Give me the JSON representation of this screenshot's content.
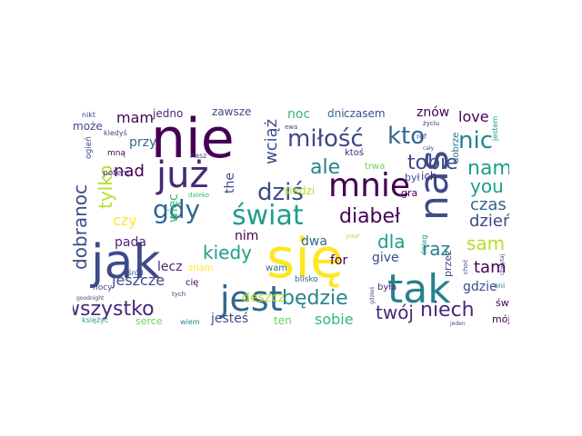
{
  "cloud": {
    "colors": {
      "dark_purple": "#440154",
      "purple": "#482878",
      "indigo": "#3e4a89",
      "blue": "#31688e",
      "teal": "#26828e",
      "green_teal": "#1f9e89",
      "green": "#35b779",
      "light_green": "#6ece58",
      "lime": "#b5de2b",
      "yellow": "#fde725"
    },
    "words": [
      {
        "text": "nie",
        "color": "#440154"
      },
      {
        "text": "się",
        "color": "#fde725"
      },
      {
        "text": "jak",
        "color": "#3e4a89"
      },
      {
        "text": "już",
        "color": "#482878"
      },
      {
        "text": "tak",
        "color": "#26828e"
      },
      {
        "text": "jest",
        "color": "#31688e"
      },
      {
        "text": "nas",
        "color": "#3e4a89"
      },
      {
        "text": "mnie",
        "color": "#440154"
      },
      {
        "text": "świat",
        "color": "#1f9e89"
      },
      {
        "text": "gdy",
        "color": "#31688e"
      },
      {
        "text": "dziś",
        "color": "#3e4a89"
      },
      {
        "text": "miłość",
        "color": "#3e4a89"
      },
      {
        "text": "kto",
        "color": "#31688e"
      },
      {
        "text": "nic",
        "color": "#26828e"
      },
      {
        "text": "ale",
        "color": "#26828e"
      },
      {
        "text": "tobie",
        "color": "#3e4a89"
      },
      {
        "text": "nam",
        "color": "#1f9e89"
      },
      {
        "text": "you",
        "color": "#1f9e89"
      },
      {
        "text": "diabeł",
        "color": "#440154"
      },
      {
        "text": "będzie",
        "color": "#26828e"
      },
      {
        "text": "wszystko",
        "color": "#482878"
      },
      {
        "text": "niech",
        "color": "#482878"
      },
      {
        "text": "twój",
        "color": "#482878"
      },
      {
        "text": "raz",
        "color": "#26828e"
      },
      {
        "text": "sam",
        "color": "#b5de2b"
      },
      {
        "text": "tam",
        "color": "#440154"
      },
      {
        "text": "czas",
        "color": "#31688e"
      },
      {
        "text": "dzień",
        "color": "#3e4a89"
      },
      {
        "text": "dla",
        "color": "#1f9e89"
      },
      {
        "text": "kiedy",
        "color": "#1f9e89"
      },
      {
        "text": "tylko",
        "color": "#b5de2b"
      },
      {
        "text": "dobranoc",
        "color": "#3e4a89"
      },
      {
        "text": "wciąż",
        "color": "#3e4a89"
      },
      {
        "text": "mam",
        "color": "#440154"
      },
      {
        "text": "nad",
        "color": "#440154"
      },
      {
        "text": "czy",
        "color": "#fde725"
      },
      {
        "text": "love",
        "color": "#440154"
      },
      {
        "text": "jeszcze",
        "color": "#3e4a89"
      },
      {
        "text": "sobie",
        "color": "#35b779"
      },
      {
        "text": "jesteś",
        "color": "#3e4a89"
      },
      {
        "text": "deszcz",
        "color": "#b5de2b"
      },
      {
        "text": "the",
        "color": "#3e4a89"
      },
      {
        "text": "noc",
        "color": "#35b779"
      },
      {
        "text": "znów",
        "color": "#440154"
      },
      {
        "text": "gdzie",
        "color": "#3e4a89"
      },
      {
        "text": "więc",
        "color": "#35b779"
      },
      {
        "text": "ten",
        "color": "#6ece58"
      },
      {
        "text": "lecz",
        "color": "#482878"
      },
      {
        "text": "pada",
        "color": "#482878"
      },
      {
        "text": "nim",
        "color": "#440154"
      },
      {
        "text": "dwa",
        "color": "#31688e"
      },
      {
        "text": "for",
        "color": "#440154"
      },
      {
        "text": "give",
        "color": "#3e4a89"
      },
      {
        "text": "przy",
        "color": "#31688e"
      },
      {
        "text": "może",
        "color": "#3e4a89"
      },
      {
        "text": "siedzi",
        "color": "#b5de2b"
      },
      {
        "text": "jedno",
        "color": "#482878"
      },
      {
        "text": "zawsze",
        "color": "#3e4a89"
      },
      {
        "text": "dni",
        "color": "#31688e"
      },
      {
        "text": "czasem",
        "color": "#3e4a89"
      },
      {
        "text": "ich",
        "color": "#482878"
      },
      {
        "text": "był",
        "color": "#3e4a89"
      },
      {
        "text": "gra",
        "color": "#440154"
      },
      {
        "text": "ktoś",
        "color": "#482878"
      },
      {
        "text": "trwa",
        "color": "#6ece58"
      },
      {
        "text": "dobrze",
        "color": "#31688e"
      },
      {
        "text": "świt",
        "color": "#440154"
      },
      {
        "text": "mój",
        "color": "#440154"
      },
      {
        "text": "przez",
        "color": "#3e4a89"
      },
      {
        "text": "była",
        "color": "#482878"
      },
      {
        "text": "serce",
        "color": "#6ece58"
      },
      {
        "text": "wiem",
        "color": "#26828e"
      },
      {
        "text": "wam",
        "color": "#31688e"
      },
      {
        "text": "blisko",
        "color": "#31688e"
      },
      {
        "text": "cię",
        "color": "#440154"
      },
      {
        "text": "znam",
        "color": "#fde725"
      },
      {
        "text": "potem",
        "color": "#482878"
      },
      {
        "text": "ogień",
        "color": "#3e4a89"
      },
      {
        "text": "mną",
        "color": "#440154"
      },
      {
        "text": "kiedyś",
        "color": "#3e4a89"
      },
      {
        "text": "nikt",
        "color": "#3e4a89"
      },
      {
        "text": "nasz",
        "color": "#3e4a89"
      },
      {
        "text": "daleko",
        "color": "#35b779"
      },
      {
        "text": "ewa",
        "color": "#3e4a89"
      },
      {
        "text": "ref",
        "color": "#3e4a89"
      },
      {
        "text": "życiu",
        "color": "#482878"
      },
      {
        "text": "jestem",
        "color": "#1f9e89"
      },
      {
        "text": "cały",
        "color": "#3e4a89"
      },
      {
        "text": "śnieg",
        "color": "#1f9e89"
      },
      {
        "text": "your",
        "color": "#b5de2b"
      },
      {
        "text": "oni",
        "color": "#26828e"
      },
      {
        "text": "choć",
        "color": "#3e4a89"
      },
      {
        "text": "chwytaj",
        "color": "#3e4a89"
      },
      {
        "text": "gdzieś",
        "color": "#3e4a89"
      },
      {
        "text": "nocy",
        "color": "#3e4a89"
      },
      {
        "text": "wśród",
        "color": "#3e4a89"
      },
      {
        "text": "tych",
        "color": "#3e4a89"
      },
      {
        "text": "goodnight",
        "color": "#3e4a89"
      },
      {
        "text": "księżyc",
        "color": "#1f9e89"
      },
      {
        "text": "jeden",
        "color": "#3e4a89"
      }
    ]
  }
}
